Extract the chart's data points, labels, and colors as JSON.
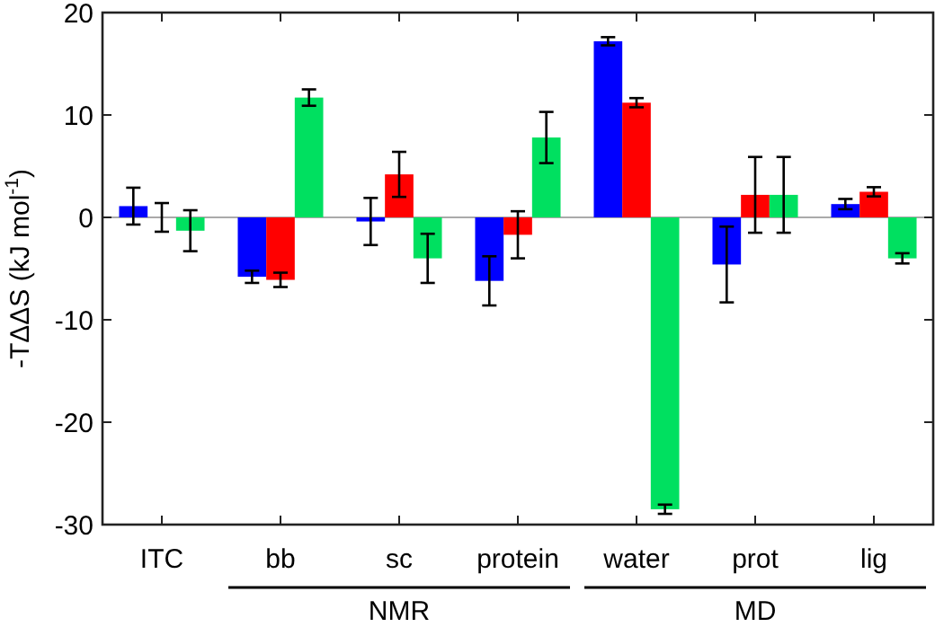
{
  "chart_data": {
    "type": "bar",
    "ylabel": "-TΔΔS (kJ mol$^{-1}$)",
    "categories": [
      "ITC",
      "bb",
      "sc",
      "protein",
      "water",
      "prot",
      "lig"
    ],
    "series": [
      {
        "color": "#0000ff",
        "values": [
          1.1,
          -5.8,
          -0.4,
          -6.2,
          17.2,
          -4.6,
          1.3
        ],
        "errors": [
          1.8,
          0.6,
          2.3,
          2.4,
          0.4,
          3.7,
          0.5
        ]
      },
      {
        "color": "#ff0000",
        "values": [
          0,
          -6.1,
          4.2,
          -1.7,
          11.2,
          2.2,
          2.5
        ],
        "errors": [
          1.4,
          0.7,
          2.2,
          2.3,
          0.45,
          3.7,
          0.45
        ]
      },
      {
        "color": "#00e060",
        "values": [
          -1.3,
          11.7,
          -4.0,
          7.8,
          -28.5,
          2.2,
          -4.0
        ],
        "errors": [
          2.0,
          0.8,
          2.4,
          2.5,
          0.45,
          3.7,
          0.5
        ]
      }
    ],
    "ylim": [
      -30,
      20
    ],
    "yticks": [
      -30,
      -20,
      -10,
      0,
      10,
      20
    ],
    "ref_lines": [
      {
        "axis": "y",
        "value": 0,
        "color": "#aaaaaa"
      }
    ],
    "annotations": [
      "NMR",
      "MD"
    ]
  }
}
